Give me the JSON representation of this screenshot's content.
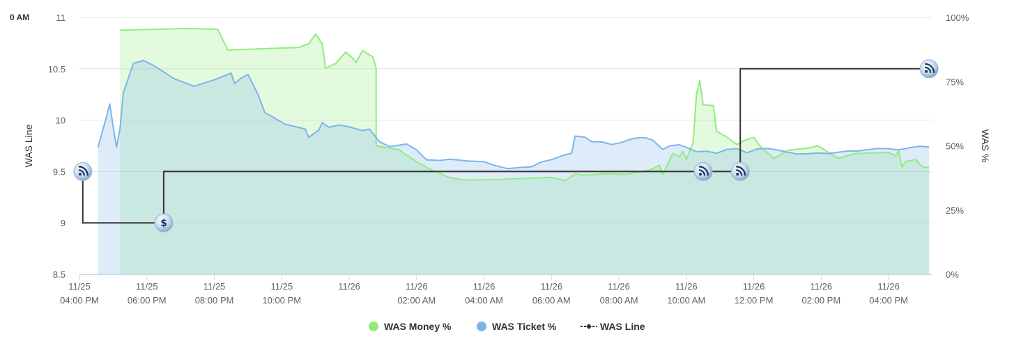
{
  "corner_label": "0 AM",
  "chart_data": {
    "type": "line",
    "title": "",
    "left_axis": {
      "label": "WAS Line",
      "ticks": [
        "8.5",
        "9",
        "9.5",
        "10",
        "10.5",
        "11"
      ],
      "min": 8.5,
      "max": 11
    },
    "right_axis": {
      "label": "WAS %",
      "ticks": [
        "0%",
        "25%",
        "50%",
        "75%",
        "100%"
      ],
      "min": 0,
      "max": 100
    },
    "x_axis": {
      "min_hours": 16.0,
      "max_hours": 41.3,
      "ticks": [
        {
          "h": 16,
          "date": "11/25",
          "time": "04:00 PM"
        },
        {
          "h": 18,
          "date": "11/25",
          "time": "06:00 PM"
        },
        {
          "h": 20,
          "date": "11/25",
          "time": "08:00 PM"
        },
        {
          "h": 22,
          "date": "11/25",
          "time": "10:00 PM"
        },
        {
          "h": 24,
          "date": "11/26",
          "time": ""
        },
        {
          "h": 26,
          "date": "11/26",
          "time": "02:00 AM"
        },
        {
          "h": 28,
          "date": "11/26",
          "time": "04:00 AM"
        },
        {
          "h": 30,
          "date": "11/26",
          "time": "06:00 AM"
        },
        {
          "h": 32,
          "date": "11/26",
          "time": "08:00 AM"
        },
        {
          "h": 34,
          "date": "11/26",
          "time": "10:00 AM"
        },
        {
          "h": 36,
          "date": "11/26",
          "time": "12:00 PM"
        },
        {
          "h": 38,
          "date": "11/26",
          "time": "02:00 PM"
        },
        {
          "h": 40,
          "date": "11/26",
          "time": "04:00 PM"
        }
      ]
    },
    "grid": true,
    "legend_position": "bottom-center",
    "series": [
      {
        "name": "WAS Money %",
        "type": "area",
        "axis": "right",
        "color": "#90ed7d",
        "fill": "rgba(144,237,125,0.25)",
        "points": [
          [
            17.2,
            95.0
          ],
          [
            19.2,
            95.7
          ],
          [
            20.1,
            95.4
          ],
          [
            20.4,
            87.3
          ],
          [
            22.5,
            88.3
          ],
          [
            22.8,
            89.8
          ],
          [
            23.0,
            93.5
          ],
          [
            23.2,
            89.8
          ],
          [
            23.3,
            80.2
          ],
          [
            23.6,
            82.1
          ],
          [
            23.9,
            86.5
          ],
          [
            24.1,
            84.2
          ],
          [
            24.2,
            82.4
          ],
          [
            24.4,
            87.1
          ],
          [
            24.7,
            84.6
          ],
          [
            24.8,
            80.4
          ],
          [
            24.8,
            50.0
          ],
          [
            25.5,
            48.4
          ],
          [
            25.7,
            46.4
          ],
          [
            26.0,
            43.8
          ],
          [
            26.5,
            40.2
          ],
          [
            27.0,
            37.6
          ],
          [
            27.4,
            36.7
          ],
          [
            28.5,
            36.9
          ],
          [
            29.0,
            37.2
          ],
          [
            30.0,
            37.7
          ],
          [
            30.4,
            36.5
          ],
          [
            30.7,
            39.0
          ],
          [
            31.0,
            38.6
          ],
          [
            31.7,
            39.2
          ],
          [
            32.2,
            38.9
          ],
          [
            32.9,
            40.5
          ],
          [
            33.2,
            42.4
          ],
          [
            33.3,
            38.9
          ],
          [
            33.6,
            47.1
          ],
          [
            33.8,
            45.7
          ],
          [
            33.9,
            47.9
          ],
          [
            34.0,
            44.7
          ],
          [
            34.2,
            51.3
          ],
          [
            34.3,
            70.0
          ],
          [
            34.4,
            75.4
          ],
          [
            34.5,
            65.9
          ],
          [
            34.8,
            65.7
          ],
          [
            34.9,
            55.6
          ],
          [
            35.2,
            53.4
          ],
          [
            35.5,
            50.5
          ],
          [
            35.7,
            52.0
          ],
          [
            36.0,
            53.3
          ],
          [
            36.2,
            49.7
          ],
          [
            36.6,
            45.1
          ],
          [
            37.0,
            48.2
          ],
          [
            37.6,
            49.1
          ],
          [
            37.9,
            50.0
          ],
          [
            38.1,
            48.4
          ],
          [
            38.5,
            45.1
          ],
          [
            39.0,
            47.0
          ],
          [
            39.5,
            47.2
          ],
          [
            40.0,
            47.4
          ],
          [
            40.2,
            46.2
          ],
          [
            40.3,
            48.0
          ],
          [
            40.4,
            41.6
          ],
          [
            40.5,
            43.9
          ],
          [
            40.8,
            44.7
          ],
          [
            41.0,
            41.8
          ],
          [
            41.2,
            41.5
          ]
        ]
      },
      {
        "name": "WAS Ticket %",
        "type": "area",
        "axis": "right",
        "color": "#7cb5ec",
        "fill": "rgba(124,181,236,0.25)",
        "points": [
          [
            16.55,
            49.4
          ],
          [
            16.8,
            61.2
          ],
          [
            16.9,
            66.3
          ],
          [
            17.0,
            57.4
          ],
          [
            17.1,
            49.4
          ],
          [
            17.2,
            56.4
          ],
          [
            17.3,
            70.6
          ],
          [
            17.6,
            82.1
          ],
          [
            17.9,
            83.2
          ],
          [
            18.2,
            81.3
          ],
          [
            18.8,
            76.2
          ],
          [
            19.4,
            73.2
          ],
          [
            20.0,
            75.7
          ],
          [
            20.5,
            78.3
          ],
          [
            20.6,
            74.3
          ],
          [
            20.8,
            76.4
          ],
          [
            21.0,
            77.8
          ],
          [
            21.3,
            69.9
          ],
          [
            21.5,
            62.9
          ],
          [
            21.8,
            60.7
          ],
          [
            22.1,
            58.4
          ],
          [
            22.4,
            57.5
          ],
          [
            22.7,
            56.5
          ],
          [
            22.8,
            53.3
          ],
          [
            23.1,
            56.1
          ],
          [
            23.2,
            59.0
          ],
          [
            23.4,
            57.2
          ],
          [
            23.7,
            58.1
          ],
          [
            24.0,
            57.4
          ],
          [
            24.4,
            55.9
          ],
          [
            24.6,
            56.5
          ],
          [
            24.9,
            51.6
          ],
          [
            25.2,
            49.7
          ],
          [
            25.7,
            50.7
          ],
          [
            26.0,
            48.4
          ],
          [
            26.3,
            44.5
          ],
          [
            26.7,
            44.3
          ],
          [
            27.0,
            44.8
          ],
          [
            27.5,
            44.1
          ],
          [
            28.0,
            43.8
          ],
          [
            28.3,
            42.4
          ],
          [
            28.7,
            41.1
          ],
          [
            29.1,
            41.6
          ],
          [
            29.4,
            41.8
          ],
          [
            29.7,
            43.7
          ],
          [
            30.0,
            44.6
          ],
          [
            30.4,
            46.5
          ],
          [
            30.6,
            47.1
          ],
          [
            30.7,
            53.8
          ],
          [
            31.0,
            53.3
          ],
          [
            31.2,
            51.6
          ],
          [
            31.5,
            51.5
          ],
          [
            31.8,
            50.5
          ],
          [
            32.1,
            51.4
          ],
          [
            32.4,
            52.8
          ],
          [
            32.6,
            53.2
          ],
          [
            32.8,
            53.1
          ],
          [
            33.0,
            52.2
          ],
          [
            33.3,
            48.6
          ],
          [
            33.5,
            50.0
          ],
          [
            33.8,
            50.4
          ],
          [
            34.0,
            49.4
          ],
          [
            34.3,
            47.7
          ],
          [
            34.6,
            47.9
          ],
          [
            34.9,
            47.1
          ],
          [
            35.2,
            48.6
          ],
          [
            35.5,
            48.9
          ],
          [
            35.8,
            47.3
          ],
          [
            36.1,
            48.8
          ],
          [
            36.4,
            49.0
          ],
          [
            36.7,
            48.4
          ],
          [
            37.0,
            47.5
          ],
          [
            37.3,
            46.8
          ],
          [
            37.6,
            46.9
          ],
          [
            37.9,
            47.2
          ],
          [
            38.2,
            47.0
          ],
          [
            38.5,
            47.5
          ],
          [
            38.8,
            48.0
          ],
          [
            39.1,
            48.0
          ],
          [
            39.4,
            48.5
          ],
          [
            39.7,
            49.0
          ],
          [
            40.0,
            48.9
          ],
          [
            40.3,
            48.4
          ],
          [
            40.6,
            49.2
          ],
          [
            40.9,
            49.8
          ],
          [
            41.2,
            49.6
          ]
        ]
      },
      {
        "name": "WAS Line",
        "type": "step",
        "axis": "left",
        "color": "#333333",
        "points": [
          [
            16.1,
            9.5
          ],
          [
            16.1,
            9.0
          ],
          [
            18.5,
            9.0
          ],
          [
            18.5,
            9.5
          ],
          [
            33.0,
            9.5
          ],
          [
            34.5,
            9.5
          ],
          [
            35.6,
            9.5
          ],
          [
            35.6,
            10.5
          ],
          [
            41.2,
            10.5
          ]
        ]
      }
    ],
    "markers": [
      {
        "h": 16.1,
        "v": 9.5,
        "icon": "rss-icon"
      },
      {
        "h": 18.5,
        "v": 9.0,
        "icon": "dollar-icon"
      },
      {
        "h": 34.5,
        "v": 9.5,
        "icon": "rss-icon"
      },
      {
        "h": 35.6,
        "v": 9.5,
        "icon": "rss-icon"
      },
      {
        "h": 41.2,
        "v": 10.5,
        "icon": "rss-icon"
      }
    ]
  }
}
